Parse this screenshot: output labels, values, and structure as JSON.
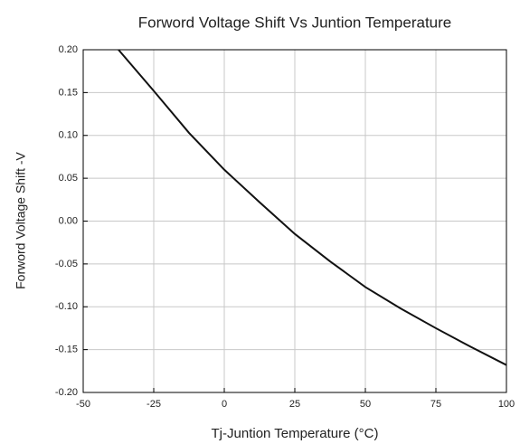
{
  "chart_data": {
    "type": "line",
    "title": "Forword Voltage Shift Vs Juntion Temperature",
    "xlabel": "Tj-Juntion Temperature (°C)",
    "ylabel": "Forword Voltage Shift -V",
    "x": [
      -37.5,
      -25,
      -12.5,
      0,
      12.5,
      25,
      37.5,
      50,
      62.5,
      75,
      87.5,
      100
    ],
    "values": [
      0.2,
      0.152,
      0.103,
      0.06,
      0.022,
      -0.015,
      -0.047,
      -0.077,
      -0.102,
      -0.125,
      -0.147,
      -0.168
    ],
    "color": "#111111",
    "xlim": [
      -50,
      100
    ],
    "xticks": [
      -50,
      -25,
      0,
      25,
      50,
      75,
      100
    ],
    "ylim": [
      -0.2,
      0.2
    ],
    "yticks": [
      {
        "value": -0.2,
        "label": "-0.20"
      },
      {
        "value": -0.15,
        "label": "-0.15"
      },
      {
        "value": -0.1,
        "label": "-0.10"
      },
      {
        "value": -0.05,
        "label": "-0.05"
      },
      {
        "value": 0,
        "label": "0.00"
      },
      {
        "value": 0.05,
        "label": "0.05"
      },
      {
        "value": 0.1,
        "label": "0.10"
      },
      {
        "value": 0.15,
        "label": "0.15"
      },
      {
        "value": 0.2,
        "label": "0.20"
      }
    ],
    "grid": true
  }
}
